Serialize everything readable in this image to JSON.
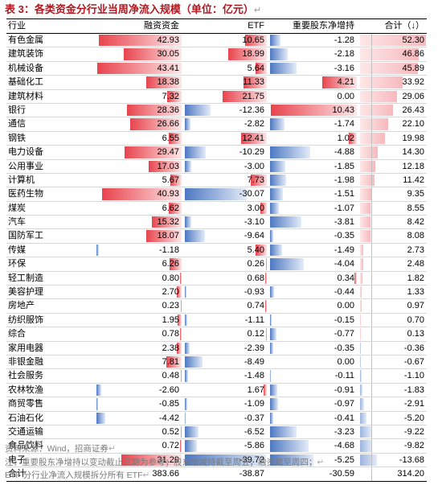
{
  "title": "表 3：各类资金分行业当周净流入规模（单位：亿元）",
  "return_mark": "↵",
  "headers": {
    "industry": "行业",
    "margin": "融资资金",
    "etf": "ETF",
    "holder": "重要股东净增持",
    "total": "合计（↓）"
  },
  "colors": {
    "positive": "#e8444d",
    "negative": "#4d78c2",
    "title": "#b0181f"
  },
  "rows": [
    {
      "name": "有色金属",
      "margin": "42.93",
      "etf": "10.65",
      "holder": "-1.28",
      "total": "52.30"
    },
    {
      "name": "建筑装饰",
      "margin": "30.05",
      "etf": "18.99",
      "holder": "-2.18",
      "total": "46.86"
    },
    {
      "name": "机械设备",
      "margin": "43.41",
      "etf": "5.64",
      "holder": "-3.16",
      "total": "45.89"
    },
    {
      "name": "基础化工",
      "margin": "18.38",
      "etf": "11.33",
      "holder": "4.21",
      "total": "33.92"
    },
    {
      "name": "建筑材料",
      "margin": "7.32",
      "etf": "21.75",
      "holder": "0.00",
      "total": "29.06"
    },
    {
      "name": "银行",
      "margin": "28.36",
      "etf": "-12.36",
      "holder": "10.43",
      "total": "26.43"
    },
    {
      "name": "通信",
      "margin": "26.66",
      "etf": "-2.82",
      "holder": "-1.74",
      "total": "22.10"
    },
    {
      "name": "钢铁",
      "margin": "6.55",
      "etf": "12.41",
      "holder": "1.02",
      "total": "19.98"
    },
    {
      "name": "电力设备",
      "margin": "29.47",
      "etf": "-10.29",
      "holder": "-4.88",
      "total": "14.30"
    },
    {
      "name": "公用事业",
      "margin": "17.03",
      "etf": "-3.00",
      "holder": "-1.85",
      "total": "12.18"
    },
    {
      "name": "计算机",
      "margin": "5.67",
      "etf": "7.73",
      "holder": "-1.98",
      "total": "11.42"
    },
    {
      "name": "医药生物",
      "margin": "40.93",
      "etf": "-30.07",
      "holder": "-1.51",
      "total": "9.35"
    },
    {
      "name": "煤炭",
      "margin": "6.62",
      "etf": "3.00",
      "holder": "-1.07",
      "total": "8.55"
    },
    {
      "name": "汽车",
      "margin": "15.32",
      "etf": "-3.10",
      "holder": "-3.81",
      "total": "8.42"
    },
    {
      "name": "国防军工",
      "margin": "18.07",
      "etf": "-9.64",
      "holder": "-0.35",
      "total": "8.08"
    },
    {
      "name": "传媒",
      "margin": "-1.18",
      "etf": "5.40",
      "holder": "-1.49",
      "total": "2.73"
    },
    {
      "name": "环保",
      "margin": "6.26",
      "etf": "0.26",
      "holder": "-4.04",
      "total": "2.48"
    },
    {
      "name": "轻工制造",
      "margin": "0.80",
      "etf": "0.68",
      "holder": "0.34",
      "total": "1.82"
    },
    {
      "name": "美容护理",
      "margin": "2.70",
      "etf": "-0.93",
      "holder": "-0.44",
      "total": "1.33"
    },
    {
      "name": "房地产",
      "margin": "0.23",
      "etf": "0.74",
      "holder": "0.00",
      "total": "0.97"
    },
    {
      "name": "纺织服饰",
      "margin": "1.95",
      "etf": "-1.11",
      "holder": "-0.15",
      "total": "0.70"
    },
    {
      "name": "综合",
      "margin": "0.78",
      "etf": "0.12",
      "holder": "-0.77",
      "total": "0.13"
    },
    {
      "name": "家用电器",
      "margin": "2.38",
      "etf": "-2.39",
      "holder": "-0.35",
      "total": "-0.36"
    },
    {
      "name": "非银金融",
      "margin": "7.81",
      "etf": "-8.49",
      "holder": "0.00",
      "total": "-0.67"
    },
    {
      "name": "社会服务",
      "margin": "0.48",
      "etf": "-1.48",
      "holder": "-0.11",
      "total": "-1.10"
    },
    {
      "name": "农林牧渔",
      "margin": "-2.60",
      "etf": "1.67",
      "holder": "-0.91",
      "total": "-1.83"
    },
    {
      "name": "商贸零售",
      "margin": "-0.85",
      "etf": "-1.09",
      "holder": "-0.97",
      "total": "-2.91"
    },
    {
      "name": "石油石化",
      "margin": "-4.42",
      "etf": "-0.37",
      "holder": "-0.41",
      "total": "-5.20"
    },
    {
      "name": "交通运输",
      "margin": "0.52",
      "etf": "-6.52",
      "holder": "-3.23",
      "total": "-9.22"
    },
    {
      "name": "食品饮料",
      "margin": "0.72",
      "etf": "-5.86",
      "holder": "-4.68",
      "total": "-9.82"
    },
    {
      "name": "电子",
      "margin": "31.29",
      "etf": "-39.72",
      "holder": "-5.25",
      "total": "-13.68"
    }
  ],
  "total_row": {
    "name": "合计",
    "margin": "383.66",
    "etf": "-38.87",
    "holder": "-30.59",
    "total": "314.20"
  },
  "notes": [
    "资料来源：Wind，招商证券",
    "注：重要股东净增持以变动截止日期为参考；股东增减持截至周五；融资截至周四；",
    "ETF 分行业净流入规模拆分所有 ETF"
  ]
}
